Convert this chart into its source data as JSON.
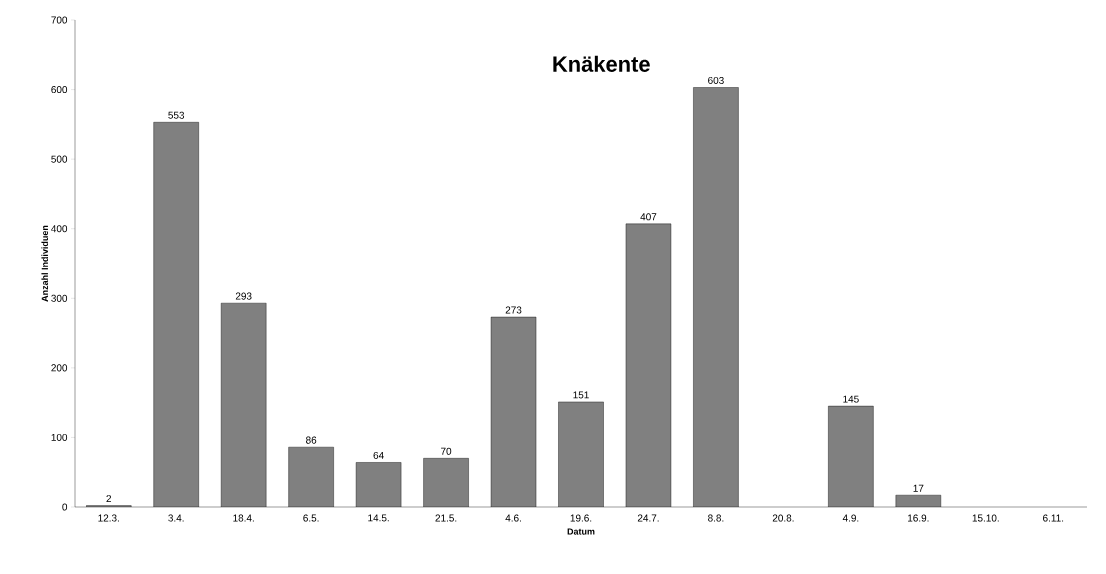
{
  "chart_data": {
    "type": "bar",
    "title": "Knäkente",
    "xlabel": "Datum",
    "ylabel": "Anzahl Individuen",
    "categories": [
      "12.3.",
      "3.4.",
      "18.4.",
      "6.5.",
      "14.5.",
      "21.5.",
      "4.6.",
      "19.6.",
      "24.7.",
      "8.8.",
      "20.8.",
      "4.9.",
      "16.9.",
      "15.10.",
      "6.11."
    ],
    "values": [
      2,
      553,
      293,
      86,
      64,
      70,
      273,
      151,
      407,
      603,
      null,
      145,
      17,
      null,
      null
    ],
    "color": "#808080",
    "ylim": [
      0,
      700
    ],
    "yticks": [
      0,
      100,
      200,
      300,
      400,
      500,
      600,
      700
    ],
    "data_labels": true
  }
}
